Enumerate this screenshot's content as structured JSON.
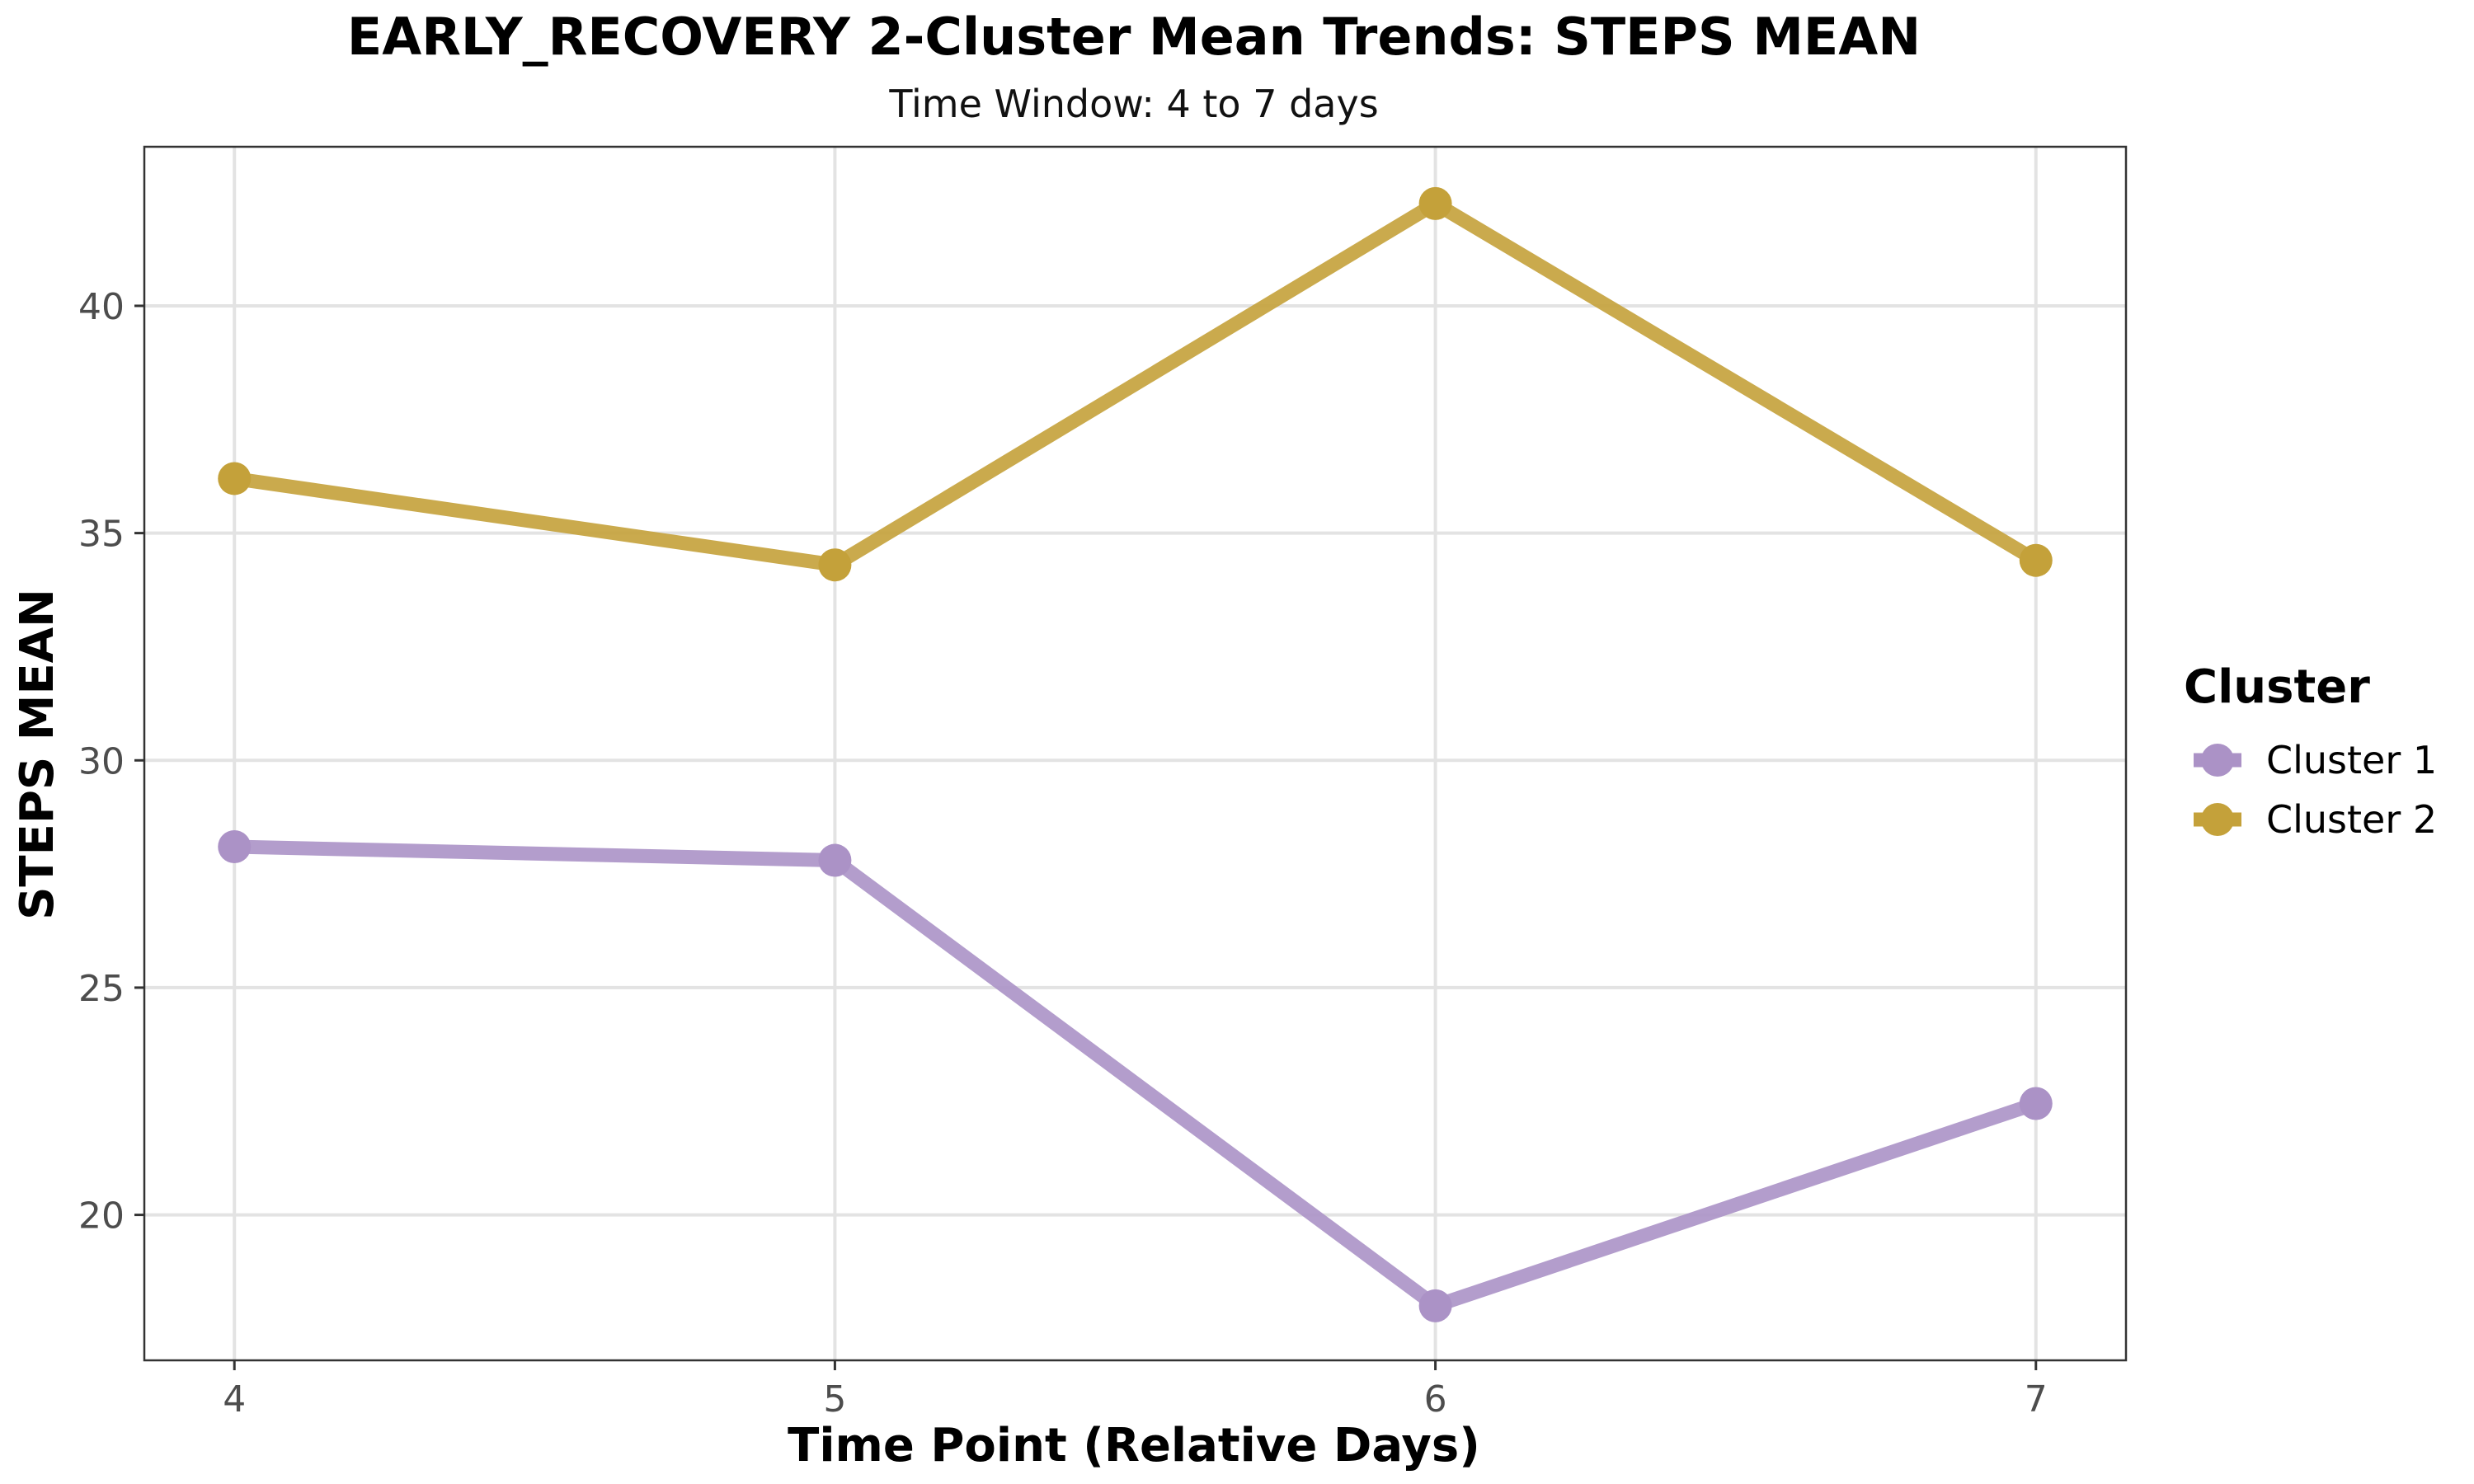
{
  "chart_data": {
    "type": "line",
    "title": "EARLY_RECOVERY 2-Cluster Mean Trends: STEPS MEAN",
    "subtitle": "Time Window: 4 to 7 days",
    "xlabel": "Time Point (Relative Days)",
    "ylabel": "STEPS MEAN",
    "x": [
      4,
      5,
      6,
      7
    ],
    "xlim": [
      3.85,
      7.15
    ],
    "ylim": [
      16.8,
      43.5
    ],
    "xticks": [
      4,
      5,
      6,
      7
    ],
    "yticks": [
      20,
      25,
      30,
      35,
      40
    ],
    "grid": true,
    "legend": {
      "title": "Cluster",
      "placement": "right"
    },
    "series": [
      {
        "name": "Cluster 1",
        "color": "#ab92c6",
        "values": [
          28.1,
          27.8,
          18.0,
          22.45
        ]
      },
      {
        "name": "Cluster 2",
        "color": "#c4a13a",
        "values": [
          36.2,
          34.3,
          42.25,
          34.4
        ]
      }
    ]
  }
}
